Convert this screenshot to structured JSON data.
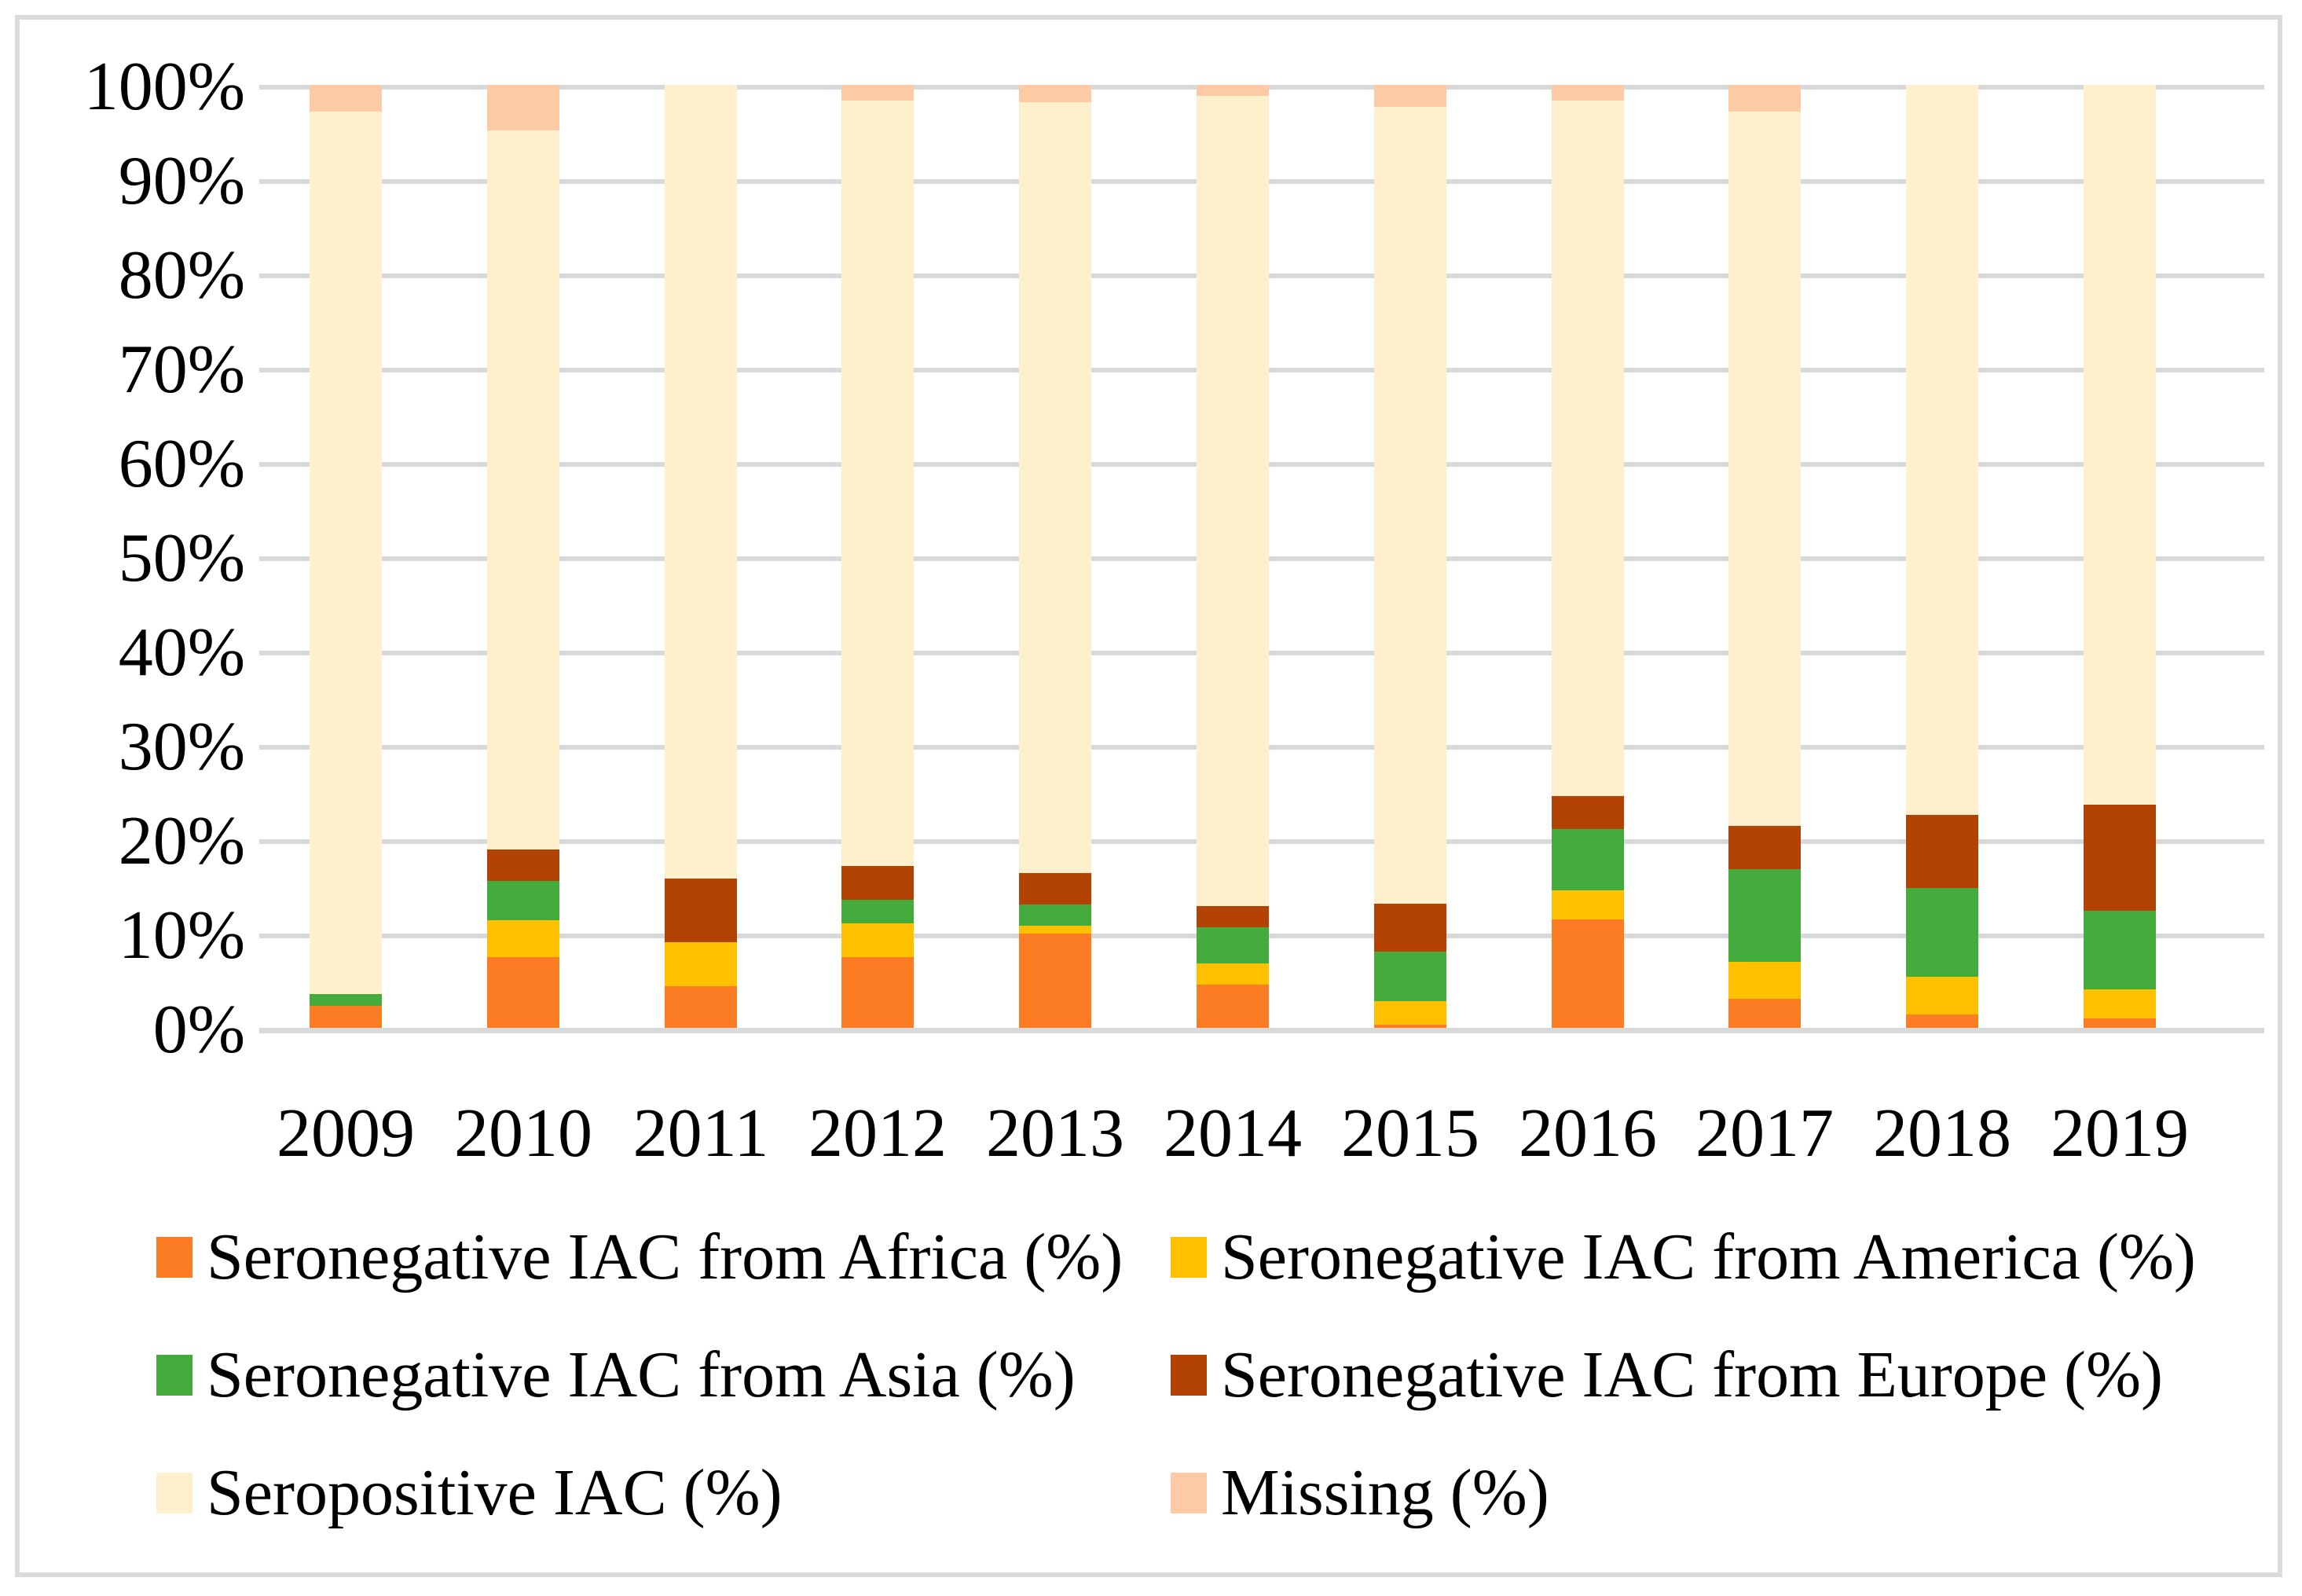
{
  "figure": {
    "background": "#FFFFFF",
    "border_color": "#DBDBDB",
    "gridline_color": "#D9D9D9",
    "text_color": "#000000"
  },
  "chart_data": {
    "type": "bar",
    "stacked": true,
    "stacking": "percent",
    "title": "",
    "xlabel": "",
    "ylabel": "",
    "ylim": [
      0,
      100
    ],
    "grid": true,
    "legend_position": "bottom",
    "legend_columns": 2,
    "y_ticks": [
      "100%",
      "90%",
      "80%",
      "70%",
      "60%",
      "50%",
      "40%",
      "30%",
      "20%",
      "10%",
      "0%"
    ],
    "categories": [
      "2009",
      "2010",
      "2011",
      "2012",
      "2013",
      "2014",
      "2015",
      "2016",
      "2017",
      "2018",
      "2019"
    ],
    "series": [
      {
        "key": "africa",
        "name": "Seronegative IAC from Africa (%)",
        "color": "#FC7C23",
        "values": [
          2.3,
          7.5,
          4.4,
          7.5,
          10.0,
          4.6,
          0.3,
          11.5,
          3.1,
          1.4,
          1.0
        ]
      },
      {
        "key": "america",
        "name": "Seronegative IAC from America (%)",
        "color": "#FFC000",
        "values": [
          0,
          3.9,
          4.7,
          3.6,
          0.8,
          2.2,
          2.5,
          3.1,
          3.9,
          4.0,
          3.1
        ]
      },
      {
        "key": "asia",
        "name": "Seronegative IAC from Asia (%)",
        "color": "#45AB3C",
        "values": [
          1.3,
          4.2,
          0,
          2.5,
          2.3,
          3.9,
          5.3,
          6.5,
          9.8,
          9.4,
          8.3
        ]
      },
      {
        "key": "europe",
        "name": "Seronegative IAC from Europe (%)",
        "color": "#B24304",
        "values": [
          0,
          3.3,
          6.7,
          3.6,
          3.3,
          2.2,
          5.1,
          3.5,
          4.6,
          7.8,
          11.3
        ]
      },
      {
        "key": "seropositive",
        "name": "Seropositive IAC (%)",
        "color": "#FEF0CC",
        "values": [
          93.6,
          76.3,
          84.2,
          81.1,
          81.8,
          85.9,
          84.5,
          73.7,
          75.8,
          77.4,
          76.3
        ]
      },
      {
        "key": "missing",
        "name": "Missing (%)",
        "color": "#FCCBA6",
        "values": [
          2.8,
          4.8,
          0,
          1.7,
          1.8,
          1.2,
          2.3,
          1.7,
          2.8,
          0,
          0
        ]
      }
    ]
  }
}
